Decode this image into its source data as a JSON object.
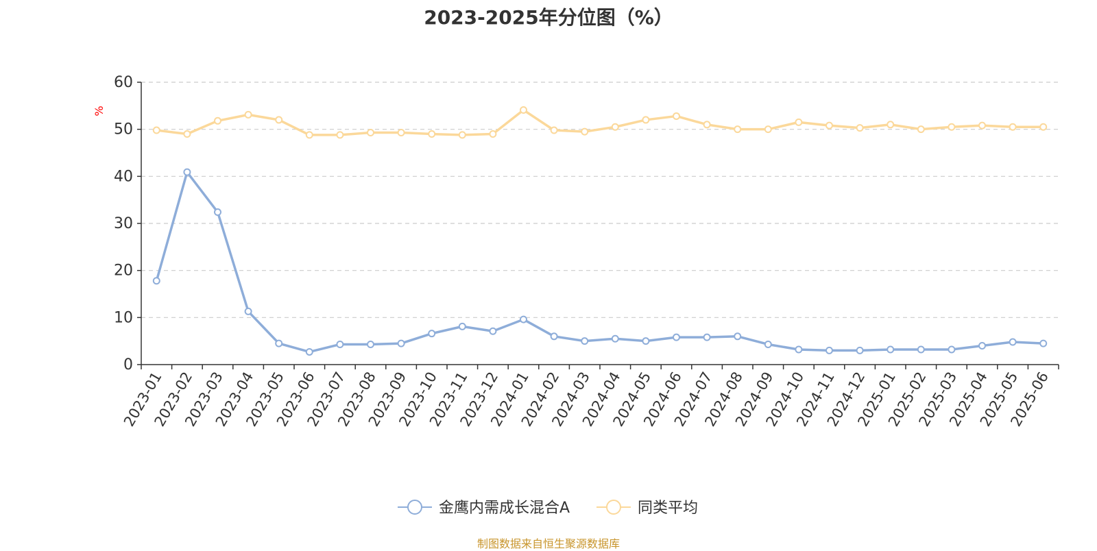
{
  "title": "2023-2025年分位图（%）",
  "footer": "制图数据来自恒生聚源数据库",
  "chart_data": {
    "type": "line",
    "title": "2023-2025年分位图（%）",
    "xlabel": "",
    "ylabel": "%",
    "ylim": [
      0,
      60
    ],
    "yticks": [
      0,
      10,
      20,
      30,
      40,
      50,
      60
    ],
    "grid": true,
    "legend_position": "bottom",
    "categories": [
      "2023-01",
      "2023-02",
      "2023-03",
      "2023-04",
      "2023-05",
      "2023-06",
      "2023-07",
      "2023-08",
      "2023-09",
      "2023-10",
      "2023-11",
      "2023-12",
      "2024-01",
      "2024-02",
      "2024-03",
      "2024-04",
      "2024-05",
      "2024-06",
      "2024-07",
      "2024-08",
      "2024-09",
      "2024-10",
      "2024-11",
      "2024-12",
      "2025-01",
      "2025-02",
      "2025-03",
      "2025-04",
      "2025-05",
      "2025-06"
    ],
    "series": [
      {
        "name": "金鹰内需成长混合A",
        "color": "#8eadd9",
        "values": [
          17.8,
          40.9,
          32.4,
          11.3,
          4.5,
          2.7,
          4.3,
          4.3,
          4.5,
          6.6,
          8.1,
          7.1,
          9.6,
          6.0,
          5.0,
          5.5,
          5.0,
          5.8,
          5.8,
          6.0,
          4.3,
          3.2,
          3.0,
          3.0,
          3.2,
          3.2,
          3.2,
          4.0,
          4.8,
          4.5
        ]
      },
      {
        "name": "同类平均",
        "color": "#fbd89a",
        "values": [
          49.8,
          49.0,
          51.8,
          53.1,
          52.0,
          48.8,
          48.8,
          49.3,
          49.3,
          49.0,
          48.8,
          49.0,
          54.1,
          49.8,
          49.5,
          50.5,
          52.0,
          52.8,
          51.0,
          50.0,
          50.0,
          51.5,
          50.8,
          50.3,
          51.0,
          50.0,
          50.5,
          50.8,
          50.5,
          50.5
        ]
      }
    ]
  }
}
